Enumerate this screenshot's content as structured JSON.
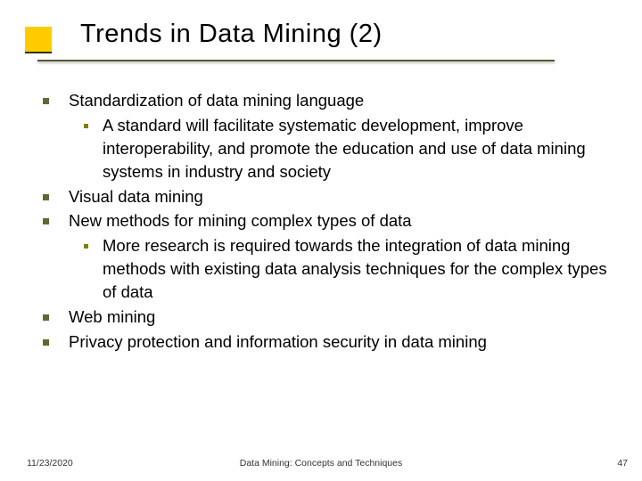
{
  "accent_color": "#ffcc00",
  "title": "Trends in Data Mining (2)",
  "bullets": [
    {
      "text": "Standardization of data mining language",
      "children": [
        "A standard will facilitate systematic development, improve interoperability, and promote the education and use of data mining systems in industry and society"
      ]
    },
    {
      "text": "Visual data mining",
      "children": []
    },
    {
      "text": "New methods for mining complex types of data",
      "children": [
        "More research is required towards the integration of data mining methods with existing data analysis techniques for the complex types of data"
      ]
    },
    {
      "text": "Web mining",
      "children": []
    },
    {
      "text": "Privacy protection and information security in data mining",
      "children": []
    }
  ],
  "footer": {
    "date": "11/23/2020",
    "center": "Data Mining: Concepts and Techniques",
    "page": "47"
  }
}
